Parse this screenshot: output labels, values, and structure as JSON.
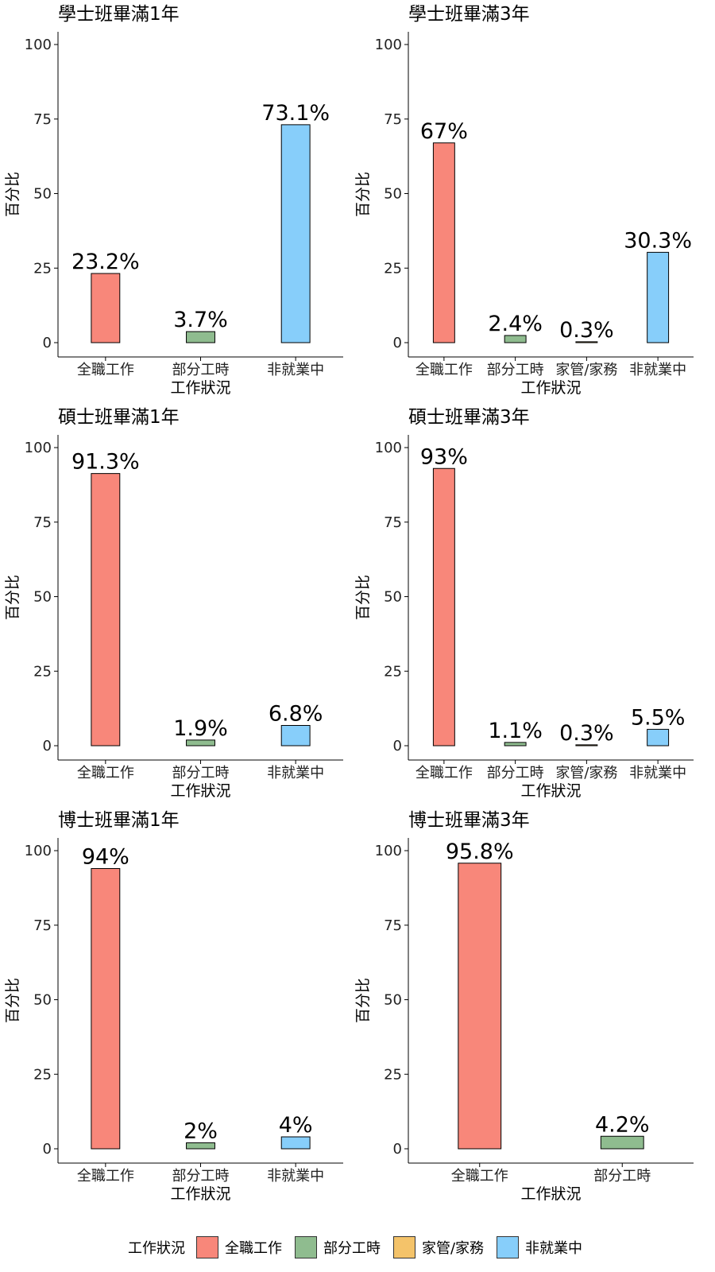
{
  "colors": {
    "全職工作": "#F8877A",
    "部分工時": "#8FBC8F",
    "家管/家務": "#F4C36A",
    "非就業中": "#87CEFA"
  },
  "chart_data": [
    {
      "type": "bar",
      "title": "學士班畢滿1年",
      "xlabel": "工作狀況",
      "ylabel": "百分比",
      "ylim": [
        0,
        100
      ],
      "yticks": [
        "0",
        "25",
        "50",
        "75",
        "100"
      ],
      "categories": [
        "全職工作",
        "部分工時",
        "非就業中"
      ],
      "values": [
        23.2,
        3.7,
        73.1
      ],
      "labels": [
        "23.2%",
        "3.7%",
        "73.1%"
      ]
    },
    {
      "type": "bar",
      "title": "學士班畢滿3年",
      "xlabel": "工作狀況",
      "ylabel": "百分比",
      "ylim": [
        0,
        100
      ],
      "yticks": [
        "0",
        "25",
        "50",
        "75",
        "100"
      ],
      "categories": [
        "全職工作",
        "部分工時",
        "家管/家務",
        "非就業中"
      ],
      "values": [
        67,
        2.4,
        0.3,
        30.3
      ],
      "labels": [
        "67%",
        "2.4%",
        "0.3%",
        "30.3%"
      ]
    },
    {
      "type": "bar",
      "title": "碩士班畢滿1年",
      "xlabel": "工作狀況",
      "ylabel": "百分比",
      "ylim": [
        0,
        100
      ],
      "yticks": [
        "0",
        "25",
        "50",
        "75",
        "100"
      ],
      "categories": [
        "全職工作",
        "部分工時",
        "非就業中"
      ],
      "values": [
        91.3,
        1.9,
        6.8
      ],
      "labels": [
        "91.3%",
        "1.9%",
        "6.8%"
      ]
    },
    {
      "type": "bar",
      "title": "碩士班畢滿3年",
      "xlabel": "工作狀況",
      "ylabel": "百分比",
      "ylim": [
        0,
        100
      ],
      "yticks": [
        "0",
        "25",
        "50",
        "75",
        "100"
      ],
      "categories": [
        "全職工作",
        "部分工時",
        "家管/家務",
        "非就業中"
      ],
      "values": [
        93,
        1.1,
        0.3,
        5.5
      ],
      "labels": [
        "93%",
        "1.1%",
        "0.3%",
        "5.5%"
      ]
    },
    {
      "type": "bar",
      "title": "博士班畢滿1年",
      "xlabel": "工作狀況",
      "ylabel": "百分比",
      "ylim": [
        0,
        100
      ],
      "yticks": [
        "0",
        "25",
        "50",
        "75",
        "100"
      ],
      "categories": [
        "全職工作",
        "部分工時",
        "非就業中"
      ],
      "values": [
        94,
        2,
        4
      ],
      "labels": [
        "94%",
        "2%",
        "4%"
      ]
    },
    {
      "type": "bar",
      "title": "博士班畢滿3年",
      "xlabel": "工作狀況",
      "ylabel": "百分比",
      "ylim": [
        0,
        100
      ],
      "yticks": [
        "0",
        "25",
        "50",
        "75",
        "100"
      ],
      "categories": [
        "全職工作",
        "部分工時"
      ],
      "values": [
        95.8,
        4.2
      ],
      "labels": [
        "95.8%",
        "4.2%"
      ]
    }
  ],
  "legend": {
    "title": "工作狀況",
    "items": [
      {
        "label": "全職工作",
        "color": "#F8877A"
      },
      {
        "label": "部分工時",
        "color": "#8FBC8F"
      },
      {
        "label": "家管/家務",
        "color": "#F4C36A"
      },
      {
        "label": "非就業中",
        "color": "#87CEFA"
      }
    ]
  }
}
